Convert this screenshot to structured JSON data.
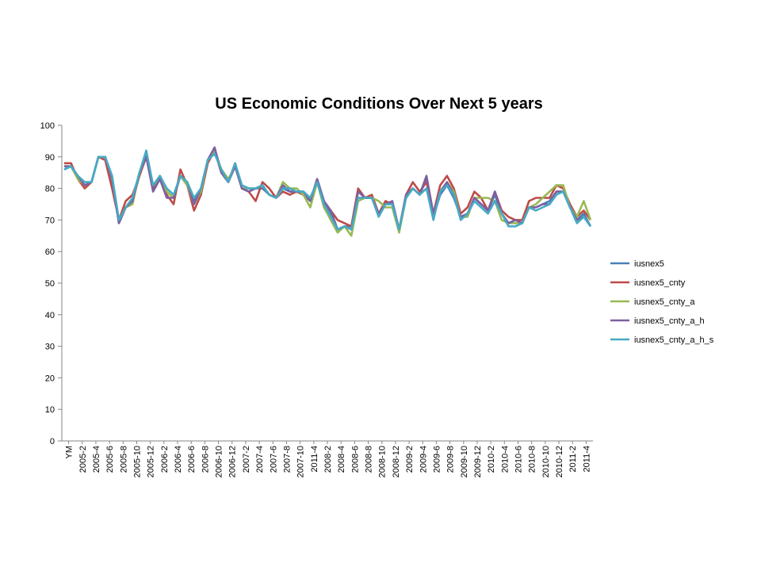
{
  "chart_data": {
    "type": "line",
    "title": "US Economic Conditions Over Next 5 years",
    "xlabel": "",
    "ylabel": "",
    "ylim": [
      0,
      100
    ],
    "yticks": [
      0,
      10,
      20,
      30,
      40,
      50,
      60,
      70,
      80,
      90,
      100
    ],
    "grid": false,
    "legend_position": "right",
    "tick_labels": [
      "YM",
      "2005-2",
      "2005-4",
      "2005-6",
      "2005-8",
      "2005-10",
      "2005-12",
      "2006-2",
      "2006-4",
      "2006-6",
      "2006-8",
      "2006-10",
      "2006-12",
      "2007-2",
      "2007-4",
      "2007-6",
      "2007-8",
      "2007-10",
      "2011-4",
      "2008-2",
      "2008-4",
      "2008-6",
      "2008-8",
      "2008-10",
      "2008-12",
      "2009-2",
      "2009-4",
      "2009-6",
      "2009-8",
      "2009-10",
      "2009-12",
      "2010-2",
      "2010-4",
      "2010-6",
      "2010-8",
      "2010-10",
      "2010-12",
      "2011-2",
      "2011-4"
    ],
    "series": [
      {
        "name": "iusnex5",
        "color": "#4a7ebb",
        "values": [
          86,
          87,
          84,
          81,
          82,
          90,
          90,
          83,
          69,
          74,
          76,
          84,
          91,
          80,
          84,
          79,
          77,
          84,
          81,
          76,
          80,
          89,
          92,
          85,
          82,
          87,
          80,
          79,
          80,
          80,
          78,
          77,
          80,
          79,
          79,
          78,
          76,
          83,
          76,
          72,
          67,
          68,
          68,
          77,
          77,
          77,
          72,
          75,
          75,
          67,
          77,
          80,
          78,
          83,
          71,
          78,
          81,
          77,
          71,
          72,
          77,
          75,
          73,
          78,
          72,
          69,
          70,
          69,
          74,
          74,
          75,
          76,
          79,
          79,
          74,
          70,
          72,
          68
        ]
      },
      {
        "name": "iusnex5_cnty",
        "color": "#be4b48",
        "values": [
          88,
          88,
          83,
          80,
          82,
          90,
          89,
          80,
          70,
          76,
          78,
          84,
          90,
          80,
          83,
          78,
          75,
          86,
          81,
          73,
          78,
          88,
          92,
          85,
          82,
          88,
          80,
          79,
          76,
          82,
          80,
          77,
          79,
          78,
          79,
          78,
          77,
          82,
          75,
          73,
          70,
          69,
          68,
          80,
          77,
          78,
          72,
          76,
          75,
          67,
          78,
          82,
          79,
          82,
          72,
          81,
          84,
          80,
          72,
          74,
          79,
          77,
          73,
          79,
          73,
          71,
          70,
          70,
          76,
          77,
          77,
          77,
          81,
          80,
          75,
          71,
          73,
          70
        ]
      },
      {
        "name": "iusnex5_cnty_a",
        "color": "#98b954",
        "values": [
          87,
          87,
          83,
          81,
          82,
          90,
          90,
          83,
          70,
          74,
          75,
          85,
          91,
          81,
          83,
          79,
          77,
          84,
          81,
          75,
          79,
          89,
          92,
          86,
          83,
          87,
          80,
          80,
          80,
          81,
          78,
          77,
          82,
          80,
          80,
          78,
          74,
          82,
          74,
          70,
          66,
          68,
          65,
          76,
          77,
          77,
          76,
          74,
          74,
          66,
          77,
          80,
          78,
          80,
          71,
          79,
          82,
          79,
          71,
          71,
          77,
          77,
          77,
          76,
          70,
          69,
          69,
          69,
          74,
          75,
          77,
          79,
          81,
          81,
          74,
          71,
          76,
          70
        ]
      },
      {
        "name": "iusnex5_cnty_a_h",
        "color": "#7d60a0",
        "values": [
          87,
          87,
          84,
          81,
          82,
          90,
          90,
          83,
          69,
          74,
          76,
          85,
          90,
          79,
          83,
          77,
          77,
          84,
          82,
          75,
          80,
          89,
          93,
          85,
          82,
          87,
          80,
          79,
          80,
          81,
          78,
          77,
          81,
          79,
          79,
          79,
          76,
          83,
          76,
          73,
          67,
          68,
          67,
          79,
          77,
          77,
          72,
          75,
          76,
          67,
          78,
          80,
          78,
          84,
          72,
          79,
          82,
          78,
          71,
          72,
          77,
          75,
          73,
          79,
          72,
          69,
          70,
          69,
          74,
          74,
          75,
          75,
          79,
          79,
          74,
          70,
          71,
          68
        ]
      },
      {
        "name": "iusnex5_cnty_a_h_s",
        "color": "#46aac5",
        "values": [
          86,
          87,
          84,
          82,
          82,
          90,
          90,
          84,
          70,
          74,
          77,
          85,
          92,
          81,
          84,
          80,
          78,
          84,
          82,
          77,
          80,
          89,
          91,
          86,
          82,
          88,
          81,
          80,
          80,
          81,
          78,
          77,
          80,
          80,
          79,
          79,
          77,
          82,
          75,
          71,
          67,
          68,
          67,
          77,
          77,
          77,
          71,
          75,
          75,
          67,
          77,
          80,
          78,
          80,
          70,
          79,
          81,
          78,
          70,
          72,
          76,
          74,
          72,
          76,
          72,
          68,
          68,
          69,
          74,
          73,
          74,
          75,
          78,
          79,
          74,
          69,
          71,
          68
        ]
      }
    ]
  }
}
